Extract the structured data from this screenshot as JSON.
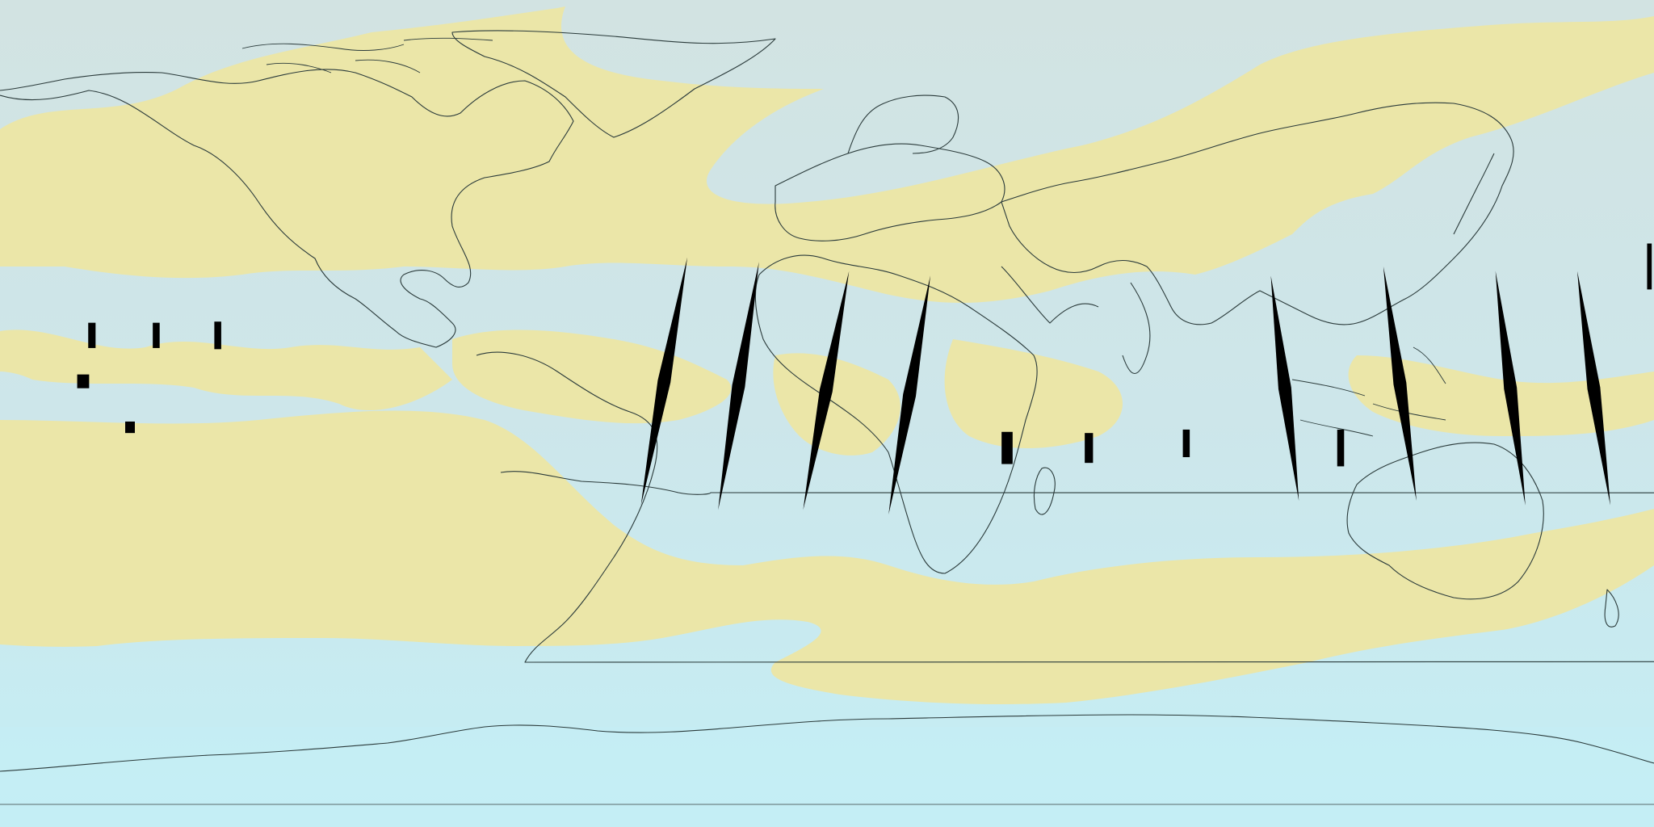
{
  "map": {
    "projection": "equirectangular",
    "extent": {
      "lon": [
        -180,
        180
      ],
      "lat": [
        -90,
        90
      ]
    },
    "colors": {
      "low_value": "#c4eef5",
      "high_value": "#ebe6a8",
      "no_data": "#000000",
      "coastline": "#2a3a3a"
    },
    "coastlines": true,
    "legend": false
  },
  "chart_data": {
    "type": "heatmap",
    "title": "",
    "xlabel": "",
    "ylabel": "",
    "xlim": [
      -180,
      180
    ],
    "ylim": [
      -90,
      90
    ],
    "no_data_swaths": [
      {
        "lon_north": -30.4,
        "lat_north": 34,
        "lon_south": -40.5,
        "lat_south": -20
      },
      {
        "lon_north": -14.8,
        "lat_north": 33,
        "lon_south": -23.7,
        "lat_south": -21
      },
      {
        "lon_north": 4.8,
        "lat_north": 31,
        "lon_south": -5.2,
        "lat_south": -21
      },
      {
        "lon_north": 22.5,
        "lat_north": 30,
        "lon_south": 13.4,
        "lat_south": -22
      },
      {
        "lon_north": 163.3,
        "lat_north": 31,
        "lon_south": 170.5,
        "lat_south": -20
      },
      {
        "lon_north": 145.5,
        "lat_north": 31,
        "lon_south": 152,
        "lat_south": -20
      },
      {
        "lon_north": 121.1,
        "lat_north": 32,
        "lon_south": 128.3,
        "lat_south": -19
      },
      {
        "lon_north": 96.6,
        "lat_north": 30,
        "lon_south": 102.7,
        "lat_south": -19
      }
    ],
    "no_data_patches": [
      {
        "lon": -160,
        "lat": 17,
        "w": 1.6,
        "h": 5.5
      },
      {
        "lon": -146,
        "lat": 17,
        "w": 1.5,
        "h": 5.5
      },
      {
        "lon": -132.6,
        "lat": 17,
        "w": 1.5,
        "h": 6
      },
      {
        "lon": -161.9,
        "lat": 7,
        "w": 2.6,
        "h": 3
      },
      {
        "lon": -151.7,
        "lat": -3,
        "w": 2.1,
        "h": 2.5
      },
      {
        "lon": 39.2,
        "lat": -7.5,
        "w": 2.4,
        "h": 7
      },
      {
        "lon": 57,
        "lat": -7.5,
        "w": 1.8,
        "h": 6.5
      },
      {
        "lon": 78.2,
        "lat": -6.5,
        "w": 1.5,
        "h": 6
      },
      {
        "lon": 111.8,
        "lat": -7.5,
        "w": 1.5,
        "h": 8
      },
      {
        "lon": 179,
        "lat": 32,
        "w": 1,
        "h": 10
      }
    ]
  }
}
